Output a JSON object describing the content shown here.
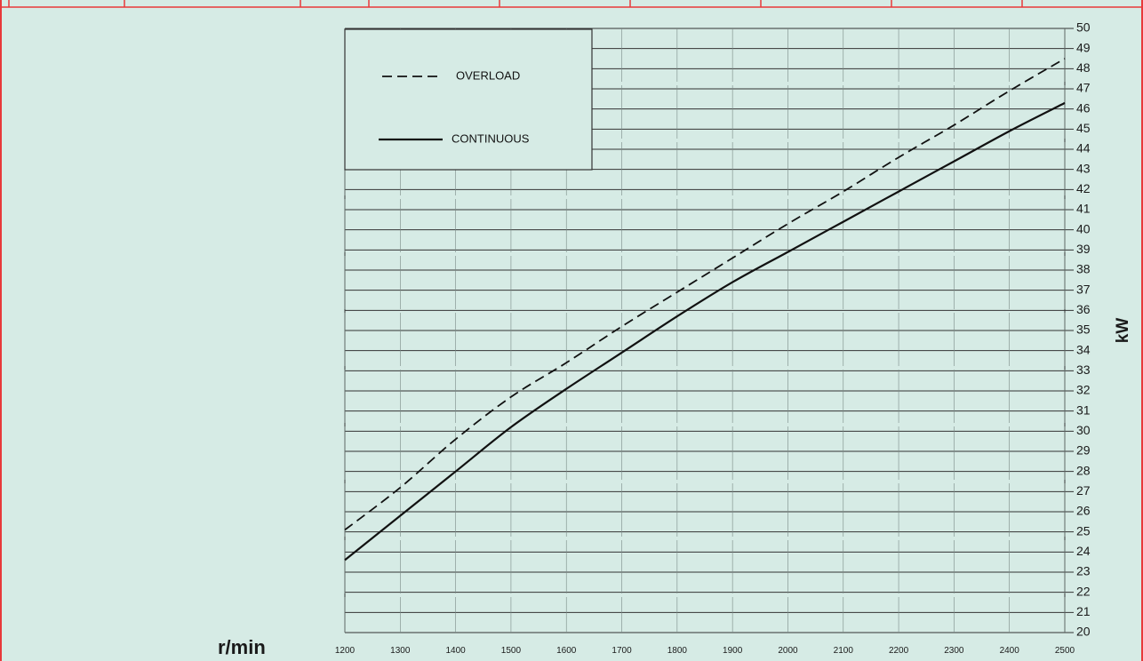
{
  "colors": {
    "background": "#d6ebe5",
    "frame": "#e8393a",
    "grid": "#333333",
    "line": "#111111"
  },
  "chart_data": {
    "type": "line",
    "title": "",
    "xlabel": "r/min",
    "ylabel": "kW",
    "xlim": [
      1200,
      2500
    ],
    "ylim": [
      20,
      50
    ],
    "x_ticks": [
      1200,
      1300,
      1400,
      1500,
      1600,
      1700,
      1800,
      1900,
      2000,
      2100,
      2200,
      2300,
      2400,
      2500
    ],
    "y_ticks": [
      20,
      21,
      22,
      23,
      24,
      25,
      26,
      27,
      28,
      29,
      30,
      31,
      32,
      33,
      34,
      35,
      36,
      37,
      38,
      39,
      40,
      41,
      42,
      43,
      44,
      45,
      46,
      47,
      48,
      49,
      50
    ],
    "grid": true,
    "legend_position": "top-left",
    "series": [
      {
        "name": "OVERLOAD",
        "style": "dashed",
        "x": [
          1200,
          1300,
          1400,
          1500,
          1600,
          1700,
          1800,
          1900,
          2000,
          2100,
          2200,
          2300,
          2400,
          2500
        ],
        "values": [
          25.1,
          27.2,
          29.6,
          31.7,
          33.4,
          35.2,
          36.9,
          38.6,
          40.3,
          41.9,
          43.6,
          45.2,
          46.9,
          48.5
        ]
      },
      {
        "name": "CONTINUOUS",
        "style": "solid",
        "x": [
          1200,
          1300,
          1400,
          1500,
          1600,
          1700,
          1800,
          1900,
          2000,
          2100,
          2200,
          2300,
          2400,
          2500
        ],
        "values": [
          23.6,
          25.8,
          28.0,
          30.2,
          32.1,
          33.9,
          35.7,
          37.4,
          38.9,
          40.4,
          41.9,
          43.4,
          44.9,
          46.3
        ]
      }
    ]
  }
}
